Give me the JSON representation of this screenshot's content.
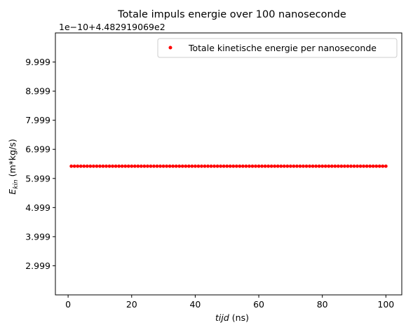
{
  "chart_data": {
    "type": "scatter",
    "title": "Totale impuls energie over 100 nanoseconde",
    "offset_label": "1e−10+4.482919069e2",
    "xlabel_italic": "tijd",
    "xlabel_rest": " (ns)",
    "ylabel_main": "E",
    "ylabel_sub": "kin",
    "ylabel_rest": " (m*kg/s)",
    "xlim": [
      -4.0,
      105.0
    ],
    "ylim": [
      1.999,
      10.999
    ],
    "x_ticks": [
      0,
      20,
      40,
      60,
      80,
      100
    ],
    "x_tick_labels": [
      "0",
      "20",
      "40",
      "60",
      "80",
      "100"
    ],
    "y_ticks": [
      2.999,
      3.999,
      4.999,
      5.999,
      6.999,
      7.999,
      8.999,
      9.999
    ],
    "y_tick_labels": [
      "2.999",
      "3.999",
      "4.999",
      "5.999",
      "6.999",
      "7.999",
      "8.999",
      "9.999"
    ],
    "grid": false,
    "legend_position": "top-right",
    "series": [
      {
        "name": "Totale kinetische energie per nanoseconde",
        "color": "#ff0000",
        "marker": "point",
        "x_start": 1,
        "x_end": 100,
        "x_step": 1,
        "y_constant": 6.42
      }
    ]
  }
}
